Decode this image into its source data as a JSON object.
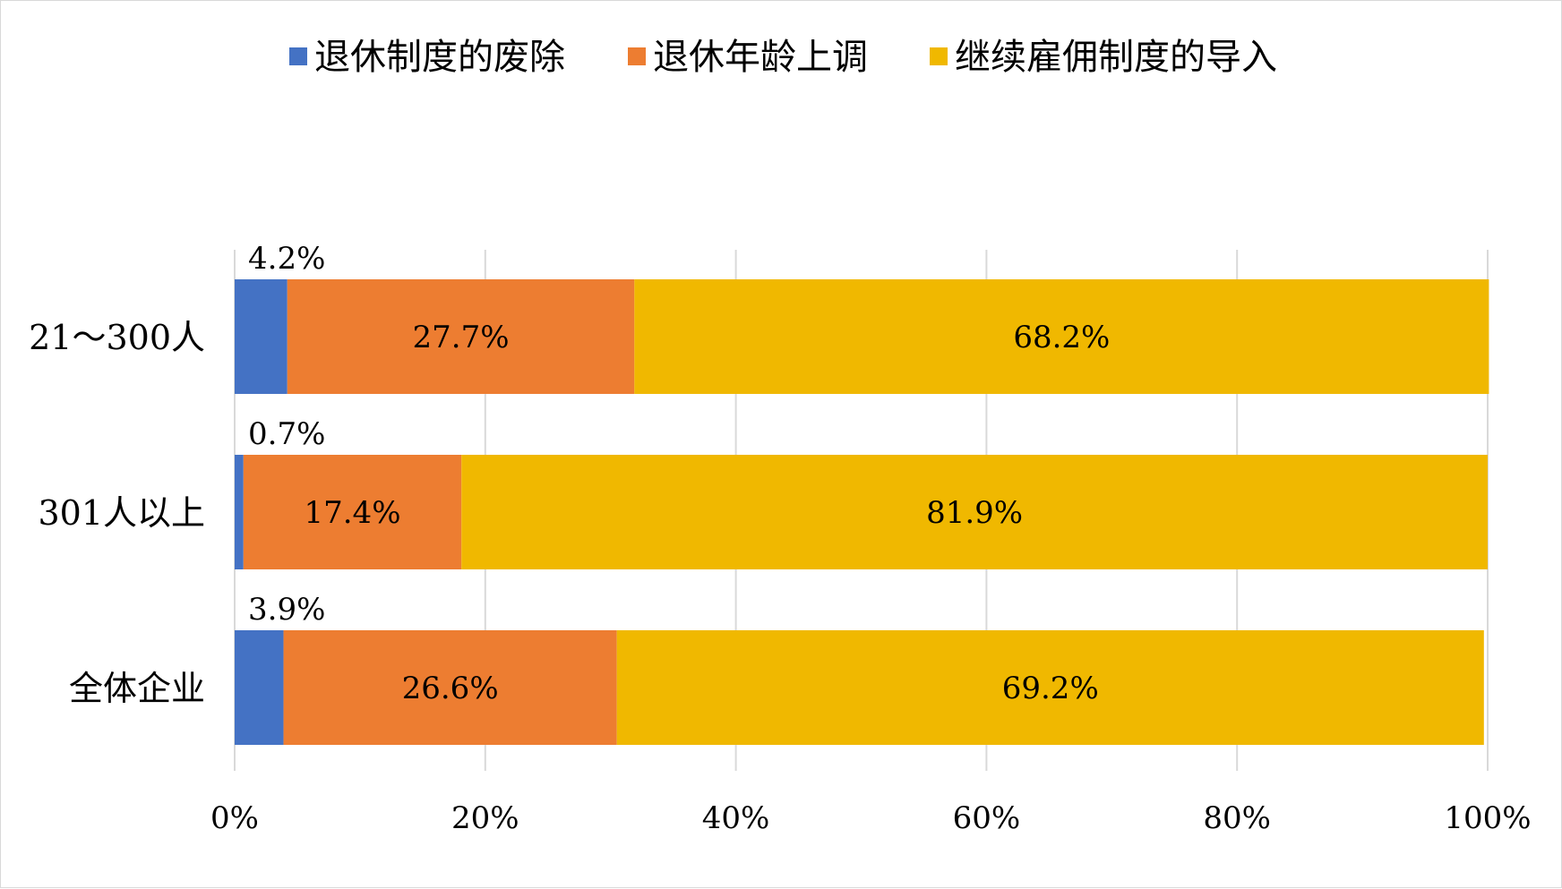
{
  "chart_data": {
    "type": "bar",
    "orientation": "horizontal",
    "stacked": "percent",
    "categories": [
      "21～300人",
      "301人以上",
      "全体企业"
    ],
    "series": [
      {
        "name": "退休制度的废除",
        "color": "#4472C4",
        "values": [
          4.2,
          0.7,
          3.9
        ],
        "labels": [
          "4.2%",
          "0.7%",
          "3.9%"
        ]
      },
      {
        "name": "退休年龄上调",
        "color": "#ED7D31",
        "values": [
          27.7,
          17.4,
          26.6
        ],
        "labels": [
          "27.7%",
          "17.4%",
          "26.6%"
        ]
      },
      {
        "name": "继续雇佣制度的导入",
        "color": "#F0B800",
        "values": [
          68.2,
          81.9,
          69.2
        ],
        "labels": [
          "68.2%",
          "81.9%",
          "69.2%"
        ]
      }
    ],
    "xlim": [
      0,
      100
    ],
    "xticks": [
      "0%",
      "20%",
      "40%",
      "60%",
      "80%",
      "100%"
    ],
    "grid": "vertical",
    "legend": "top"
  }
}
